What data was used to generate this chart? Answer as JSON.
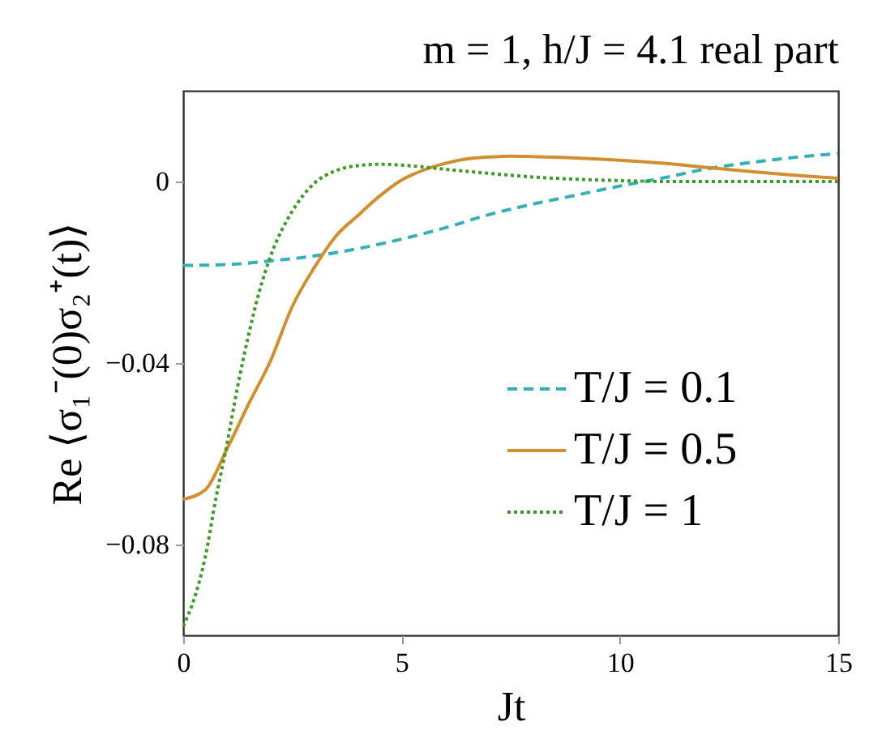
{
  "chart_data": {
    "type": "line",
    "title": "m = 1, h/J = 4.1 real part",
    "xlabel": "Jt",
    "ylabel": "Re ⟨σ₁⁻(0)σ₂⁺(t)⟩",
    "xlim": [
      0,
      15
    ],
    "xticks": [
      0,
      5,
      10,
      15
    ],
    "ylim": [
      -0.1,
      0.02
    ],
    "yticks": [
      {
        "value": -0.08,
        "label": "−0.08"
      },
      {
        "value": -0.04,
        "label": "−0.04"
      },
      0
    ],
    "legend": "bottom right",
    "series": [
      {
        "name": "T/J = 0.1",
        "color": "#36b0b8",
        "line_style": "dashed",
        "x": [
          0,
          1,
          2,
          3,
          4,
          5,
          6,
          7,
          8,
          9,
          10,
          11,
          12,
          13,
          14,
          15
        ],
        "values": [
          -0.0185,
          -0.0183,
          -0.0175,
          -0.0164,
          -0.0148,
          -0.0127,
          -0.0102,
          -0.0073,
          -0.005,
          -0.003,
          -0.001,
          0.0008,
          0.0028,
          0.0042,
          0.0053,
          0.0062
        ]
      },
      {
        "name": "T/J = 0.5",
        "color": "#d18f2f",
        "line_style": "solid",
        "x": [
          0,
          0.5,
          1,
          1.5,
          2,
          2.5,
          3,
          3.5,
          4,
          4.5,
          5,
          5.5,
          6,
          6.5,
          7,
          7.5,
          8,
          9,
          10,
          11,
          12,
          13,
          14,
          15
        ],
        "values": [
          -0.07,
          -0.068,
          -0.059,
          -0.049,
          -0.0395,
          -0.0275,
          -0.019,
          -0.012,
          -0.0075,
          -0.0032,
          0.0003,
          0.0025,
          0.004,
          0.005,
          0.0054,
          0.0056,
          0.0055,
          0.0052,
          0.0047,
          0.004,
          0.0031,
          0.0022,
          0.0014,
          0.0007
        ]
      },
      {
        "name": "T/J = 1",
        "color": "#3d9b26",
        "line_style": "dotted",
        "x": [
          0,
          0.25,
          0.5,
          0.75,
          1,
          1.25,
          1.5,
          1.75,
          2,
          2.5,
          3,
          3.5,
          4,
          4.5,
          5,
          5.5,
          6,
          7,
          8,
          9,
          10,
          11,
          12,
          13,
          14,
          15
        ],
        "values": [
          -0.098,
          -0.092,
          -0.083,
          -0.0698,
          -0.058,
          -0.045,
          -0.0337,
          -0.024,
          -0.0165,
          -0.0065,
          -0.0004,
          0.0024,
          0.0035,
          0.0038,
          0.0036,
          0.0032,
          0.0027,
          0.0018,
          0.001,
          0.0005,
          0.0002,
          0,
          0,
          0,
          0,
          0
        ]
      }
    ]
  }
}
